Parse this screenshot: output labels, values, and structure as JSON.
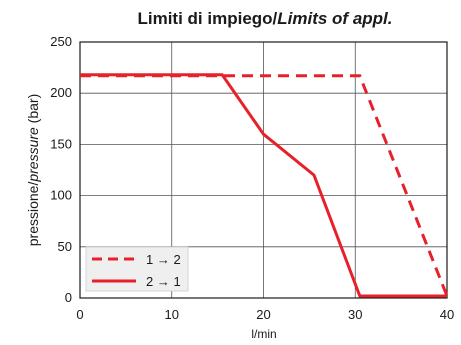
{
  "chart_data": {
    "type": "line",
    "title": {
      "main": "Limiti di impiego/",
      "italic": "Limits of appl."
    },
    "ylabel": {
      "main": "pressione/",
      "italic": "pressure",
      "suffix": " (bar)"
    },
    "xlabel": "l/min",
    "xlim": [
      0,
      40
    ],
    "ylim": [
      0,
      250
    ],
    "x_ticks": [
      0,
      10,
      20,
      30,
      40
    ],
    "y_ticks": [
      0,
      50,
      100,
      150,
      200,
      250
    ],
    "grid": true,
    "legend_position": "bottom-left",
    "colors": {
      "series": "#e8202a",
      "grid": "#555555",
      "legend_bg": "#efefef"
    },
    "series": [
      {
        "name": "1 → 2",
        "style": "dashed",
        "x": [
          0,
          16,
          30.5,
          40
        ],
        "y": [
          217,
          217,
          217,
          2
        ]
      },
      {
        "name": "2 → 1",
        "style": "solid",
        "x": [
          0,
          15.5,
          20,
          25.5,
          30.5,
          40
        ],
        "y": [
          218,
          218,
          160,
          120,
          2,
          2
        ]
      }
    ]
  }
}
